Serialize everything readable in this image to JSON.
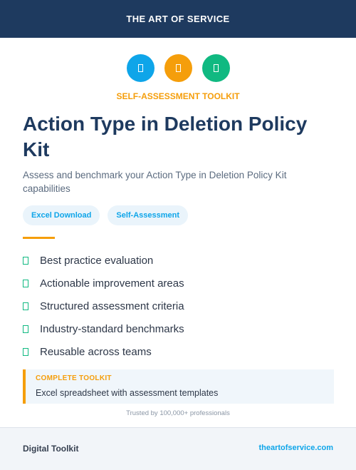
{
  "header": {
    "brand": "THE ART OF SERVICE"
  },
  "icons": [
    {
      "name": "document-icon",
      "color": "#0ea5e9"
    },
    {
      "name": "document-icon",
      "color": "#f59e0b"
    },
    {
      "name": "document-icon",
      "color": "#10b981"
    }
  ],
  "kicker": "SELF-ASSESSMENT TOOLKIT",
  "title": "Action Type in Deletion Policy Kit",
  "subtitle": "Assess and benchmark your Action Type in Deletion Policy Kit capabilities",
  "tags": [
    "Excel Download",
    "Self-Assessment"
  ],
  "features": [
    "Best practice evaluation",
    "Actionable improvement areas",
    "Structured assessment criteria",
    "Industry-standard benchmarks",
    "Reusable across teams"
  ],
  "callout": {
    "title": "COMPLETE TOOLKIT",
    "text": "Excel spreadsheet with assessment templates"
  },
  "trusted": "Trusted by 100,000+ professionals",
  "footer": {
    "left": "Digital Toolkit",
    "right": "theartofservice.com"
  },
  "colors": {
    "navy": "#1e3a5f",
    "accent": "#f59e0b",
    "blue": "#0ea5e9",
    "green": "#10b981"
  }
}
